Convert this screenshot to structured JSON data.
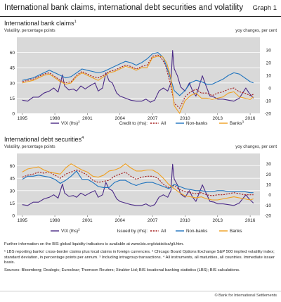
{
  "header": {
    "title": "International bank claims, international debt securities and volatility",
    "graph_label": "Graph 1"
  },
  "panels": [
    {
      "title": "International bank claims",
      "title_note": "1",
      "left_axis_caption": "Volatility, percentage points",
      "right_axis_caption": "yoy changes, per cent",
      "legend": {
        "vix": "VIX (lhs)",
        "vix_note": "2",
        "credit_label": "Credit to (rhs):",
        "all": "All",
        "nonbanks": "Non-banks",
        "banks": "Banks",
        "banks_note": "3"
      }
    },
    {
      "title": "International debt securities",
      "title_note": "4",
      "left_axis_caption": "Volatility, percentage points",
      "right_axis_caption": "yoy changes, per cent",
      "legend": {
        "vix": "VIX (lhs)",
        "vix_note": "2",
        "credit_label": "Issued by (rhs):",
        "all": "All",
        "nonbanks": "Non-banks",
        "banks": "Banks",
        "banks_note": ""
      }
    }
  ],
  "notes": {
    "further_info": "Further information on the BIS global liquidity indicators is available at www.bis.org/statistics/gli.htm.",
    "footnotes": "¹ LBS reporting banks' cross-border claims plus local claims in foreign currencies. ² Chicago Board Options Exchange S&P 500 implied volatility index; standard deviation, in percentage points per annum. ³ Including intragroup transactions. ⁴ All instruments, all maturities, all countries. Immediate issuer basis.",
    "sources": "Sources: Bloomberg; Dealogic; Euroclear; Thomson Reuters; Xtrakter Ltd; BIS locational banking statistics (LBS); BIS calculations."
  },
  "copyright": "© Bank for International Settlements",
  "colors": {
    "plot_bg": "#d9d9d9",
    "vix": "#4b2a86",
    "all": "#a31b1b",
    "nonbanks": "#1e73be",
    "banks": "#f0a020",
    "grid": "#ffffff"
  },
  "chart_data": [
    {
      "type": "line",
      "title": "International bank claims",
      "x_range": [
        1994.5,
        2016.9
      ],
      "x_ticks": [
        1995,
        1998,
        2001,
        2004,
        2007,
        2010,
        2013,
        2016
      ],
      "lhs": {
        "label": "Volatility, percentage points",
        "ylim": [
          0,
          75
        ],
        "ticks": [
          0,
          15,
          30,
          45,
          60
        ]
      },
      "rhs": {
        "label": "yoy changes, per cent",
        "ylim": [
          -20,
          40
        ],
        "ticks": [
          -20,
          -10,
          0,
          10,
          20,
          30
        ]
      },
      "grid": true,
      "legend_position": "bottom",
      "series": [
        {
          "name": "VIX (lhs)",
          "axis": "lhs",
          "style": "solid",
          "x": [
            1995.0,
            1995.5,
            1996.0,
            1996.5,
            1997.0,
            1997.5,
            1997.9,
            1998.3,
            1998.7,
            1998.9,
            1999.3,
            1999.7,
            2000.0,
            2000.4,
            2000.8,
            2001.2,
            2001.7,
            2002.0,
            2002.4,
            2002.7,
            2003.0,
            2003.3,
            2003.7,
            2004.0,
            2004.5,
            2005.0,
            2005.5,
            2006.0,
            2006.4,
            2006.8,
            2007.2,
            2007.6,
            2008.0,
            2008.4,
            2008.7,
            2008.85,
            2009.0,
            2009.3,
            2009.6,
            2010.0,
            2010.4,
            2010.7,
            2011.0,
            2011.6,
            2011.9,
            2012.3,
            2012.7,
            2013.0,
            2013.5,
            2014.0,
            2014.5,
            2015.0,
            2015.6,
            2015.9,
            2016.3
          ],
          "y": [
            13,
            12,
            16,
            16,
            20,
            22,
            25,
            21,
            38,
            27,
            23,
            24,
            22,
            27,
            24,
            27,
            30,
            22,
            25,
            40,
            32,
            30,
            20,
            17,
            15,
            13,
            12,
            12,
            14,
            11,
            13,
            22,
            25,
            22,
            30,
            62,
            44,
            37,
            26,
            22,
            30,
            22,
            17,
            37,
            28,
            17,
            16,
            14,
            14,
            13,
            12,
            15,
            25,
            20,
            15
          ]
        },
        {
          "name": "All",
          "axis": "rhs",
          "style": "dashed",
          "x": [
            1995.0,
            1995.5,
            1996.0,
            1996.5,
            1997.0,
            1997.5,
            1998.0,
            1998.5,
            1999.0,
            1999.5,
            2000.0,
            2000.5,
            2001.0,
            2001.5,
            2002.0,
            2002.5,
            2003.0,
            2003.5,
            2004.0,
            2004.5,
            2005.0,
            2005.5,
            2006.0,
            2006.5,
            2007.0,
            2007.5,
            2007.8,
            2008.2,
            2008.6,
            2009.0,
            2009.5,
            2010.0,
            2010.5,
            2011.0,
            2011.5,
            2012.0,
            2012.5,
            2013.0,
            2013.5,
            2014.0,
            2014.5,
            2015.0,
            2015.5,
            2016.0,
            2016.3
          ],
          "y": [
            5,
            6,
            7,
            9,
            11,
            12,
            9,
            6,
            4,
            5,
            10,
            13,
            11,
            9,
            8,
            10,
            13,
            14,
            16,
            18,
            17,
            15,
            17,
            18,
            25,
            26,
            24,
            18,
            5,
            -12,
            -16,
            -7,
            -3,
            -1,
            -4,
            -4,
            -6,
            -4,
            -3,
            -1,
            0,
            -3,
            -4,
            -6,
            -5
          ]
        },
        {
          "name": "Non-banks",
          "axis": "rhs",
          "style": "solid",
          "x": [
            1995.0,
            1995.5,
            1996.0,
            1996.5,
            1997.0,
            1997.5,
            1998.0,
            1998.5,
            1999.0,
            1999.5,
            2000.0,
            2000.5,
            2001.0,
            2001.5,
            2002.0,
            2002.5,
            2003.0,
            2003.5,
            2004.0,
            2004.5,
            2005.0,
            2005.5,
            2006.0,
            2006.5,
            2007.0,
            2007.5,
            2008.0,
            2008.5,
            2009.0,
            2009.5,
            2010.0,
            2010.5,
            2011.0,
            2011.5,
            2012.0,
            2012.5,
            2013.0,
            2013.5,
            2014.0,
            2014.5,
            2015.0,
            2015.5,
            2016.0,
            2016.3
          ],
          "y": [
            6,
            7,
            8,
            10,
            12,
            14,
            12,
            10,
            8,
            9,
            12,
            15,
            14,
            13,
            12,
            13,
            15,
            17,
            19,
            21,
            20,
            18,
            20,
            23,
            27,
            28,
            24,
            12,
            -2,
            -6,
            -2,
            4,
            6,
            5,
            3,
            3,
            5,
            7,
            10,
            12,
            11,
            8,
            5,
            4
          ]
        },
        {
          "name": "Banks",
          "axis": "rhs",
          "style": "solid",
          "x": [
            1995.0,
            1995.5,
            1996.0,
            1996.5,
            1997.0,
            1997.5,
            1998.0,
            1998.5,
            1999.0,
            1999.5,
            2000.0,
            2000.5,
            2001.0,
            2001.5,
            2002.0,
            2002.5,
            2003.0,
            2003.5,
            2004.0,
            2004.5,
            2005.0,
            2005.5,
            2006.0,
            2006.5,
            2007.0,
            2007.5,
            2007.9,
            2008.3,
            2008.7,
            2009.0,
            2009.5,
            2010.0,
            2010.5,
            2011.0,
            2011.5,
            2012.0,
            2012.5,
            2013.0,
            2013.5,
            2014.0,
            2014.5,
            2015.0,
            2015.5,
            2016.0,
            2016.3
          ],
          "y": [
            4,
            5,
            6,
            8,
            10,
            11,
            8,
            5,
            3,
            4,
            9,
            12,
            10,
            8,
            6,
            9,
            12,
            13,
            15,
            17,
            16,
            14,
            16,
            16,
            24,
            25,
            25,
            20,
            8,
            -14,
            -20,
            -10,
            -6,
            -4,
            -8,
            -8,
            -9,
            -8,
            -7,
            -4,
            -3,
            -7,
            -8,
            -9,
            -7
          ]
        }
      ]
    },
    {
      "type": "line",
      "title": "International debt securities",
      "x_range": [
        1994.5,
        2016.9
      ],
      "x_ticks": [
        1995,
        1998,
        2001,
        2004,
        2007,
        2010,
        2013,
        2016
      ],
      "lhs": {
        "label": "Volatility, percentage points",
        "ylim": [
          0,
          75
        ],
        "ticks": [
          0,
          15,
          30,
          45,
          60
        ]
      },
      "rhs": {
        "label": "yoy changes, per cent",
        "ylim": [
          -20,
          40
        ],
        "ticks": [
          -20,
          -10,
          0,
          10,
          20,
          30
        ]
      },
      "grid": true,
      "legend_position": "bottom",
      "series": [
        {
          "name": "VIX (lhs)",
          "axis": "lhs",
          "style": "solid",
          "x": [
            1995.0,
            1995.5,
            1996.0,
            1996.5,
            1997.0,
            1997.5,
            1997.9,
            1998.3,
            1998.7,
            1998.9,
            1999.3,
            1999.7,
            2000.0,
            2000.4,
            2000.8,
            2001.2,
            2001.7,
            2002.0,
            2002.4,
            2002.7,
            2003.0,
            2003.3,
            2003.7,
            2004.0,
            2004.5,
            2005.0,
            2005.5,
            2006.0,
            2006.4,
            2006.8,
            2007.2,
            2007.6,
            2008.0,
            2008.4,
            2008.7,
            2008.85,
            2009.0,
            2009.3,
            2009.6,
            2010.0,
            2010.4,
            2010.7,
            2011.0,
            2011.6,
            2011.9,
            2012.3,
            2012.7,
            2013.0,
            2013.5,
            2014.0,
            2014.5,
            2015.0,
            2015.6,
            2015.9,
            2016.3
          ],
          "y": [
            13,
            12,
            16,
            16,
            20,
            22,
            25,
            21,
            38,
            27,
            23,
            24,
            22,
            27,
            24,
            27,
            30,
            22,
            25,
            40,
            32,
            30,
            20,
            17,
            15,
            13,
            12,
            12,
            14,
            11,
            13,
            22,
            25,
            22,
            30,
            62,
            44,
            37,
            26,
            22,
            30,
            22,
            17,
            37,
            28,
            17,
            16,
            14,
            14,
            13,
            12,
            15,
            25,
            20,
            15
          ]
        },
        {
          "name": "All",
          "axis": "rhs",
          "style": "dashed",
          "x": [
            1995.0,
            1995.5,
            1996.0,
            1996.5,
            1997.0,
            1997.5,
            1998.0,
            1998.5,
            1999.0,
            1999.5,
            2000.0,
            2000.5,
            2001.0,
            2001.5,
            2002.0,
            2002.5,
            2003.0,
            2003.5,
            2004.0,
            2004.5,
            2005.0,
            2005.5,
            2006.0,
            2006.5,
            2007.0,
            2007.5,
            2008.0,
            2008.5,
            2009.0,
            2009.5,
            2010.0,
            2010.5,
            2011.0,
            2011.5,
            2012.0,
            2012.5,
            2013.0,
            2013.5,
            2014.0,
            2014.5,
            2015.0,
            2015.5,
            2016.0,
            2016.3
          ],
          "y": [
            17,
            19,
            20,
            22,
            21,
            22,
            19,
            16,
            20,
            22,
            24,
            22,
            19,
            14,
            12,
            13,
            14,
            18,
            20,
            22,
            18,
            15,
            17,
            18,
            18,
            16,
            10,
            7,
            9,
            5,
            3,
            2,
            1,
            2,
            0,
            -1,
            0,
            0,
            1,
            2,
            1,
            0,
            0,
            0
          ]
        },
        {
          "name": "Non-banks",
          "axis": "rhs",
          "style": "solid",
          "x": [
            1995.0,
            1995.5,
            1996.0,
            1996.5,
            1997.0,
            1997.5,
            1998.0,
            1998.5,
            1999.0,
            1999.5,
            2000.0,
            2000.5,
            2001.0,
            2001.5,
            2002.0,
            2002.5,
            2003.0,
            2003.5,
            2004.0,
            2004.5,
            2005.0,
            2005.5,
            2006.0,
            2006.5,
            2007.0,
            2007.5,
            2008.0,
            2008.5,
            2009.0,
            2009.5,
            2010.0,
            2010.5,
            2011.0,
            2011.5,
            2012.0,
            2012.5,
            2013.0,
            2013.5,
            2014.0,
            2014.5,
            2015.0,
            2015.5,
            2016.0,
            2016.3
          ],
          "y": [
            15,
            18,
            18,
            19,
            18,
            17,
            15,
            11,
            14,
            18,
            23,
            15,
            15,
            12,
            8,
            7,
            7,
            12,
            14,
            14,
            11,
            9,
            11,
            12,
            12,
            10,
            8,
            6,
            10,
            8,
            6,
            5,
            4,
            4,
            3,
            3,
            4,
            4,
            3,
            3,
            3,
            3,
            2,
            2
          ]
        },
        {
          "name": "Banks",
          "axis": "rhs",
          "style": "solid",
          "x": [
            1995.0,
            1995.5,
            1996.0,
            1996.5,
            1997.0,
            1997.5,
            1998.0,
            1998.5,
            1999.0,
            1999.5,
            2000.0,
            2000.5,
            2001.0,
            2001.5,
            2002.0,
            2002.5,
            2003.0,
            2003.5,
            2004.0,
            2004.5,
            2005.0,
            2005.5,
            2006.0,
            2006.5,
            2007.0,
            2007.5,
            2008.0,
            2008.5,
            2009.0,
            2009.5,
            2010.0,
            2010.5,
            2011.0,
            2011.5,
            2012.0,
            2012.5,
            2013.0,
            2013.5,
            2014.0,
            2014.5,
            2015.0,
            2015.5,
            2016.0,
            2016.3
          ],
          "y": [
            22,
            25,
            26,
            27,
            24,
            22,
            21,
            20,
            26,
            30,
            27,
            24,
            22,
            18,
            17,
            19,
            23,
            24,
            26,
            30,
            26,
            23,
            23,
            24,
            24,
            21,
            16,
            10,
            6,
            2,
            -1,
            -2,
            -3,
            -2,
            -4,
            -5,
            -5,
            -4,
            -3,
            -2,
            -3,
            -4,
            -5,
            -4
          ]
        }
      ]
    }
  ]
}
